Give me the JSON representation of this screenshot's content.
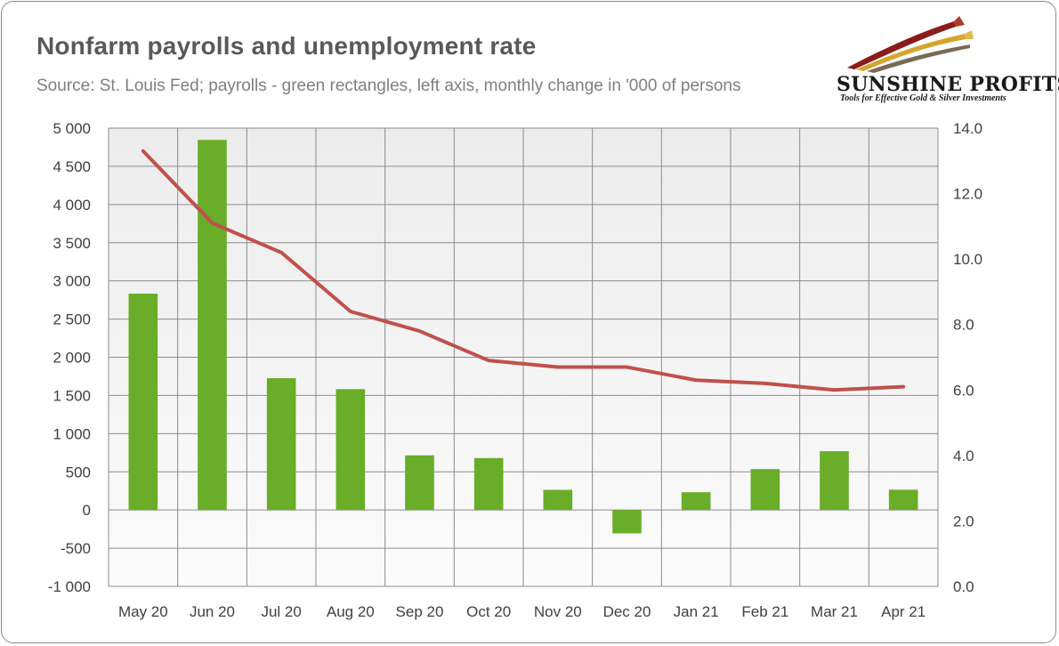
{
  "title": "Nonfarm payrolls and unemployment rate",
  "subtitle": "Source: St. Louis Fed; payrolls - green rectangles, left axis, monthly change in '000 of persons",
  "logo": {
    "name": "SUNSHINE PROFITS",
    "tagline": "Tools for Effective Gold & Silver Investments"
  },
  "chart_data": {
    "type": "bar",
    "categories": [
      "May 20",
      "Jun 20",
      "Jul 20",
      "Aug 20",
      "Sep 20",
      "Oct 20",
      "Nov 20",
      "Dec 20",
      "Jan 21",
      "Feb 21",
      "Mar 21",
      "Apr 21"
    ],
    "series": [
      {
        "type": "bar",
        "axis": "left",
        "color": "#6aad28",
        "values": [
          2833,
          4846,
          1726,
          1583,
          716,
          680,
          264,
          -306,
          233,
          536,
          770,
          266
        ]
      },
      {
        "type": "line",
        "axis": "right",
        "color": "#c0504d",
        "values": [
          13.3,
          11.1,
          10.2,
          8.4,
          7.8,
          6.9,
          6.7,
          6.7,
          6.3,
          6.2,
          6.0,
          6.1
        ]
      }
    ],
    "left_axis": {
      "ylim": [
        -1000,
        5000
      ],
      "ticks": [
        -1000,
        -500,
        0,
        500,
        1000,
        1500,
        2000,
        2500,
        3000,
        3500,
        4000,
        4500,
        5000
      ],
      "tick_labels": [
        "-1 000",
        "-500",
        "0",
        "500",
        "1 000",
        "1 500",
        "2 000",
        "2 500",
        "3 000",
        "3 500",
        "4 000",
        "4 500",
        "5 000"
      ]
    },
    "right_axis": {
      "ylim": [
        0,
        14
      ],
      "ticks": [
        0,
        2,
        4,
        6,
        8,
        10,
        12,
        14
      ],
      "tick_labels": [
        "0.0",
        "2.0",
        "4.0",
        "6.0",
        "8.0",
        "10.0",
        "12.0",
        "14.0"
      ]
    },
    "grid": true,
    "legend": "none",
    "colors": {
      "plot_background": "#f2f2f2",
      "grid": "#8c8c8c"
    }
  }
}
